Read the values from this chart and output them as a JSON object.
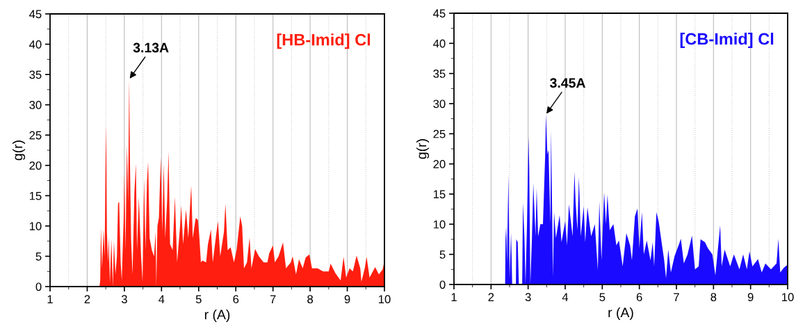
{
  "chart_data": [
    {
      "type": "area",
      "xlabel": "r (A)",
      "ylabel": "g(r)",
      "xlim": [
        1,
        10
      ],
      "ylim": [
        0,
        45
      ],
      "xticks": [
        1,
        2,
        3,
        4,
        5,
        6,
        7,
        8,
        9,
        10
      ],
      "yticks": [
        0,
        5,
        10,
        15,
        20,
        25,
        30,
        35,
        40,
        45
      ],
      "grid": "x",
      "annotations": [
        {
          "text": "3.13A",
          "x": 3.13,
          "y": 34.2
        }
      ],
      "series": [
        {
          "name": "[HB-Imid] Cl",
          "color": "#ff1e0f",
          "x": [
            2.33,
            2.35,
            2.37,
            2.4,
            2.44,
            2.47,
            2.49,
            2.51,
            2.53,
            2.56,
            2.58,
            2.61,
            2.65,
            2.69,
            2.72,
            2.76,
            2.8,
            2.83,
            2.86,
            2.9,
            2.93,
            2.98,
            3.0,
            3.03,
            3.07,
            3.1,
            3.13,
            3.15,
            3.18,
            3.22,
            3.27,
            3.31,
            3.34,
            3.39,
            3.45,
            3.49,
            3.53,
            3.57,
            3.61,
            3.64,
            3.68,
            3.74,
            3.8,
            3.84,
            3.86,
            3.89,
            3.93,
            3.98,
            4.02,
            4.06,
            4.1,
            4.15,
            4.19,
            4.23,
            4.3,
            4.36,
            4.42,
            4.5,
            4.53,
            4.58,
            4.66,
            4.72,
            4.8,
            4.84,
            4.92,
            4.98,
            5.02,
            5.06,
            5.1,
            5.2,
            5.25,
            5.33,
            5.38,
            5.48,
            5.52,
            5.58,
            5.68,
            5.72,
            5.78,
            5.86,
            5.95,
            6.02,
            6.12,
            6.17,
            6.22,
            6.3,
            6.37,
            6.42,
            6.52,
            6.62,
            6.75,
            6.85,
            6.9,
            7.0,
            7.05,
            7.15,
            7.27,
            7.35,
            7.48,
            7.53,
            7.62,
            7.7,
            7.8,
            7.88,
            7.98,
            8.05,
            8.2,
            8.35,
            8.5,
            8.55,
            8.68,
            8.82,
            8.9,
            8.97,
            9.06,
            9.15,
            9.25,
            9.35,
            9.38,
            9.47,
            9.52,
            9.6,
            9.75,
            9.85,
            9.95,
            10.0
          ],
          "values": [
            0,
            1,
            9.8,
            3,
            9.4,
            5,
            18.3,
            26.7,
            9,
            4,
            8.2,
            0.5,
            7.8,
            0,
            7.5,
            2,
            5,
            13.7,
            14,
            4,
            1,
            11,
            18.8,
            6,
            23.5,
            14,
            34.2,
            21,
            8,
            2,
            15.6,
            20.3,
            6,
            14.7,
            5,
            0.8,
            17.8,
            6,
            17.5,
            20.6,
            8,
            6,
            5,
            9,
            0,
            10,
            11.4,
            21.3,
            9,
            20.3,
            8,
            14,
            22.3,
            7,
            6,
            14.8,
            4,
            10,
            13.4,
            7,
            12.7,
            8,
            16.7,
            8,
            11.3,
            11,
            8,
            4,
            4.3,
            4,
            7,
            9.4,
            4,
            9,
            10.8,
            5,
            9,
            13.7,
            6,
            6.5,
            4,
            6,
            11.6,
            10,
            3,
            4,
            8.1,
            3,
            6.2,
            5,
            4,
            4,
            5.5,
            6.8,
            4,
            5,
            7.3,
            3,
            4,
            5,
            2,
            4.5,
            3,
            4.8,
            5.3,
            3,
            3,
            2.5,
            2.5,
            3.8,
            2.2,
            1,
            4.9,
            1.5,
            3,
            2.5,
            5.1,
            3,
            0.8,
            3,
            4.9,
            1.5,
            3.2,
            2,
            2.8,
            4.2
          ]
        }
      ]
    },
    {
      "type": "area",
      "xlabel": "r (A)",
      "ylabel": "g(r)",
      "xlim": [
        1,
        10
      ],
      "ylim": [
        0,
        45
      ],
      "xticks": [
        1,
        2,
        3,
        4,
        5,
        6,
        7,
        8,
        9,
        10
      ],
      "yticks": [
        0,
        5,
        10,
        15,
        20,
        25,
        30,
        35,
        40,
        45
      ],
      "grid": "x",
      "annotations": [
        {
          "text": "3.45A",
          "x": 3.48,
          "y": 28.2
        }
      ],
      "series": [
        {
          "name": "[CB-Imid] Cl",
          "color": "#1a0aff",
          "x": [
            2.38,
            2.39,
            2.41,
            2.43,
            2.45,
            2.47,
            2.5,
            2.54,
            2.57,
            2.67,
            2.68,
            2.72,
            2.75,
            2.84,
            2.86,
            2.9,
            2.93,
            2.97,
            3.01,
            3.03,
            3.06,
            3.1,
            3.14,
            3.2,
            3.23,
            3.27,
            3.33,
            3.4,
            3.46,
            3.48,
            3.52,
            3.55,
            3.6,
            3.62,
            3.67,
            3.7,
            3.75,
            3.85,
            3.9,
            4.0,
            4.05,
            4.1,
            4.2,
            4.25,
            4.28,
            4.33,
            4.37,
            4.42,
            4.5,
            4.54,
            4.6,
            4.7,
            4.8,
            4.88,
            4.92,
            4.98,
            5.05,
            5.1,
            5.14,
            5.2,
            5.3,
            5.38,
            5.45,
            5.55,
            5.65,
            5.75,
            5.8,
            5.88,
            5.95,
            6.0,
            6.07,
            6.12,
            6.2,
            6.3,
            6.36,
            6.4,
            6.46,
            6.52,
            6.6,
            6.67,
            6.72,
            6.78,
            6.85,
            6.95,
            7.07,
            7.12,
            7.2,
            7.3,
            7.42,
            7.5,
            7.6,
            7.65,
            7.77,
            7.85,
            7.97,
            8.05,
            8.18,
            8.22,
            8.3,
            8.45,
            8.55,
            8.7,
            8.8,
            8.9,
            8.97,
            9.05,
            9.2,
            9.3,
            9.4,
            9.55,
            9.7,
            9.75,
            9.8,
            9.9,
            10.0
          ],
          "values": [
            0,
            7.5,
            9.7,
            3.5,
            11,
            18.2,
            1,
            8.6,
            0,
            0,
            7.5,
            7,
            0,
            0,
            13.6,
            8,
            0,
            10,
            24.6,
            19.4,
            0,
            7,
            16.8,
            8,
            16,
            8,
            10,
            10,
            21.4,
            28.2,
            21.6,
            22.3,
            10,
            25.6,
            1.2,
            12,
            7.7,
            11.5,
            7,
            10.5,
            6.5,
            13.3,
            8,
            18.7,
            13.8,
            9,
            17.8,
            8,
            13,
            7,
            12.8,
            8,
            10,
            2.4,
            13.8,
            4,
            15.3,
            10,
            14.9,
            9,
            10,
            6.5,
            7.3,
            3,
            8.5,
            6.5,
            4,
            11.3,
            12.6,
            6,
            12,
            5,
            7.3,
            4,
            7,
            3,
            12,
            10.5,
            7,
            4,
            1,
            5.8,
            2,
            4.7,
            6.7,
            7.6,
            3.5,
            5,
            8.1,
            2.5,
            3,
            7.5,
            7,
            6,
            5,
            1.5,
            9.8,
            3,
            5.8,
            3,
            5,
            2.5,
            5,
            2.5,
            5.5,
            3,
            4.2,
            2,
            3.5,
            2.5,
            3.5,
            7.6,
            2,
            2.8,
            3.3
          ]
        }
      ]
    }
  ]
}
